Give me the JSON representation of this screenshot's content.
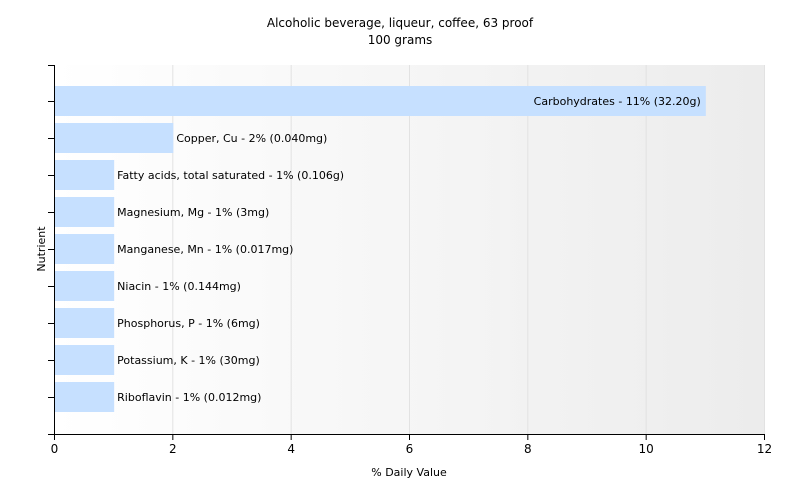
{
  "chart_data": {
    "type": "bar",
    "orientation": "horizontal",
    "title": "Alcoholic beverage, liqueur, coffee, 63 proof",
    "subtitle": "100 grams",
    "xlabel": "% Daily Value",
    "ylabel": "Nutrient",
    "xlim": [
      0,
      12
    ],
    "xticks": [
      0,
      2,
      4,
      6,
      8,
      10,
      12
    ],
    "grid": "vertical",
    "bar_color": "#c6e0ff",
    "categories": [
      "Carbohydrates",
      "Copper, Cu",
      "Fatty acids, total saturated",
      "Magnesium, Mg",
      "Manganese, Mn",
      "Niacin",
      "Phosphorus, P",
      "Potassium, K",
      "Riboflavin"
    ],
    "values": [
      11,
      2,
      1,
      1,
      1,
      1,
      1,
      1,
      1
    ],
    "labels": [
      "Carbohydrates - 11% (32.20g)",
      "Copper, Cu - 2% (0.040mg)",
      "Fatty acids, total saturated - 1% (0.106g)",
      "Magnesium, Mg - 1% (3mg)",
      "Manganese, Mn - 1% (0.017mg)",
      "Niacin - 1% (0.144mg)",
      "Phosphorus, P - 1% (6mg)",
      "Potassium, K - 1% (30mg)",
      "Riboflavin - 1% (0.012mg)"
    ]
  }
}
